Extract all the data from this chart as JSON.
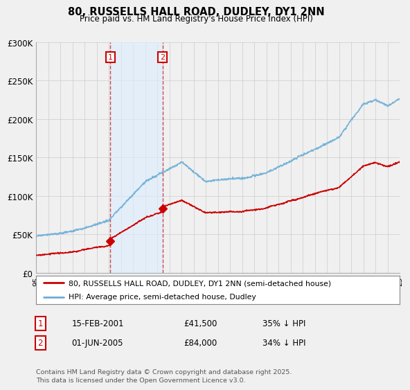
{
  "title": "80, RUSSELLS HALL ROAD, DUDLEY, DY1 2NN",
  "subtitle": "Price paid vs. HM Land Registry's House Price Index (HPI)",
  "legend_line1": "80, RUSSELLS HALL ROAD, DUDLEY, DY1 2NN (semi-detached house)",
  "legend_line2": "HPI: Average price, semi-detached house, Dudley",
  "annotation1_label": "1",
  "annotation1_date": "15-FEB-2001",
  "annotation1_price": "£41,500",
  "annotation1_hpi": "35% ↓ HPI",
  "annotation2_label": "2",
  "annotation2_date": "01-JUN-2005",
  "annotation2_price": "£84,000",
  "annotation2_hpi": "34% ↓ HPI",
  "footer": "Contains HM Land Registry data © Crown copyright and database right 2025.\nThis data is licensed under the Open Government Licence v3.0.",
  "hpi_color": "#6baed6",
  "price_color": "#cc0000",
  "vline_color": "#cc0000",
  "shaded_region_color": "#ddeeff",
  "shaded_region_alpha": 0.6,
  "ylim": [
    0,
    300000
  ],
  "yticks": [
    0,
    50000,
    100000,
    150000,
    200000,
    250000,
    300000
  ],
  "ytick_labels": [
    "£0",
    "£50K",
    "£100K",
    "£150K",
    "£200K",
    "£250K",
    "£300K"
  ],
  "year_start": 1995,
  "year_end": 2025,
  "purchase1_year": 2001.12,
  "purchase2_year": 2005.42,
  "purchase1_price": 41500,
  "purchase2_price": 84000,
  "bg_color": "#f0f0f0",
  "plot_bg_color": "#f0f0f0",
  "grid_color": "#cccccc"
}
